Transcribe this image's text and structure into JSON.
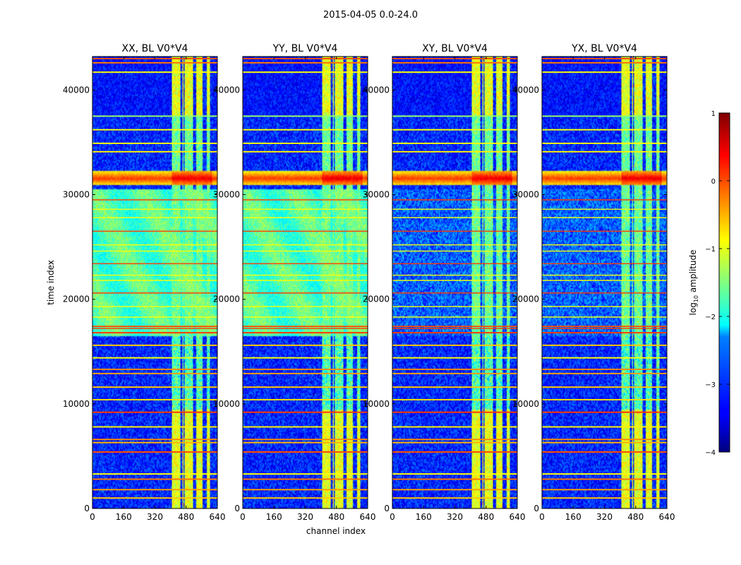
{
  "figure": {
    "suptitle": "2015-04-05 0.0-24.0"
  },
  "chart_data": {
    "type": "heatmap",
    "xlabel": "channel index",
    "ylabel": "time index",
    "xlim": [
      0,
      640
    ],
    "ylim": [
      0,
      43200
    ],
    "xticks": [
      "0",
      "160",
      "320",
      "480",
      "640"
    ],
    "xtick_values": [
      0,
      160,
      320,
      480,
      640
    ],
    "yticks": [
      "0",
      "10000",
      "20000",
      "30000",
      "40000"
    ],
    "ytick_values": [
      0,
      10000,
      20000,
      30000,
      40000
    ],
    "panels": [
      {
        "title": "XX, BL V0*V4",
        "pol": "XX"
      },
      {
        "title": "YY, BL V0*V4",
        "pol": "YY"
      },
      {
        "title": "XY, BL V0*V4",
        "pol": "XY"
      },
      {
        "title": "YX, BL V0*V4",
        "pol": "YX"
      }
    ],
    "colorbar": {
      "label": "log₁₀ amplitude",
      "range": [
        -4,
        1
      ],
      "ticks": [
        "1",
        "0",
        "−1",
        "−2",
        "−3",
        "−4"
      ],
      "tick_values": [
        1,
        0,
        -1,
        -2,
        -3,
        -4
      ],
      "colormap": "jet"
    },
    "rfi_band_channels": [
      405,
      615
    ],
    "strong_event_time_range": [
      30900,
      32200
    ],
    "flagged_block_time_range": [
      16500,
      30500
    ],
    "noise_floor_log_amp": -3.2
  },
  "colors": {
    "jet_dark": "#00007f",
    "jet_blue": "#0000ff",
    "jet_cyan": "#00ffff",
    "jet_yellow": "#ffff00",
    "jet_red": "#ff0000",
    "jet_dark_red": "#7f0000"
  }
}
